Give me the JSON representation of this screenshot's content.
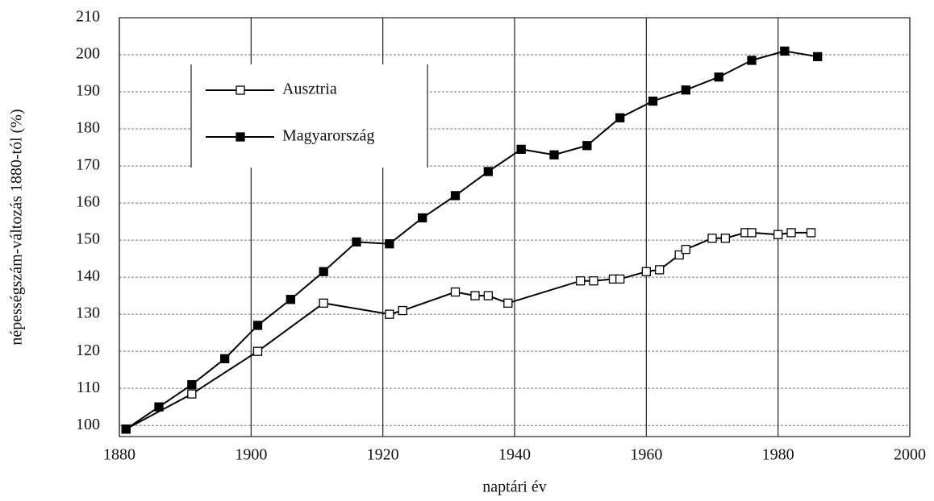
{
  "chart_data": {
    "type": "line",
    "x_label": "naptári év",
    "y_label": "népességszám-változás 1880-tól (%)",
    "xlim": [
      1880,
      2000
    ],
    "xticks": [
      1880,
      1900,
      1920,
      1940,
      1960,
      1980,
      2000
    ],
    "ylim": [
      97,
      210
    ],
    "yticks": [
      100,
      110,
      120,
      130,
      140,
      150,
      160,
      170,
      180,
      190,
      200,
      210
    ],
    "grid": true,
    "legend": "upper left",
    "series": [
      {
        "name": "Ausztria",
        "color": "#000000",
        "marker": "open-square",
        "x": [
          1881,
          1891,
          1901,
          1911,
          1921,
          1923,
          1931,
          1934,
          1936,
          1939,
          1950,
          1952,
          1955,
          1956,
          1960,
          1962,
          1965,
          1966,
          1970,
          1972,
          1975,
          1976,
          1980,
          1982,
          1985
        ],
        "values": [
          99,
          108.5,
          120,
          133,
          130,
          131,
          136,
          135,
          135,
          133,
          139,
          139,
          139.5,
          139.5,
          141.5,
          142,
          146,
          147.5,
          150.5,
          150.5,
          152,
          152,
          151.5,
          152,
          152
        ]
      },
      {
        "name": "Magyarország",
        "color": "#000000",
        "marker": "filled-square",
        "x": [
          1881,
          1886,
          1891,
          1896,
          1901,
          1906,
          1911,
          1916,
          1921,
          1926,
          1931,
          1936,
          1941,
          1946,
          1951,
          1956,
          1961,
          1966,
          1971,
          1976,
          1981,
          1986
        ],
        "values": [
          99,
          105,
          111,
          118,
          127,
          134,
          141.5,
          149.5,
          149,
          156,
          162,
          168.5,
          174.5,
          173,
          175.5,
          183,
          187.5,
          190.5,
          194,
          198.5,
          201,
          199.5
        ]
      }
    ]
  }
}
